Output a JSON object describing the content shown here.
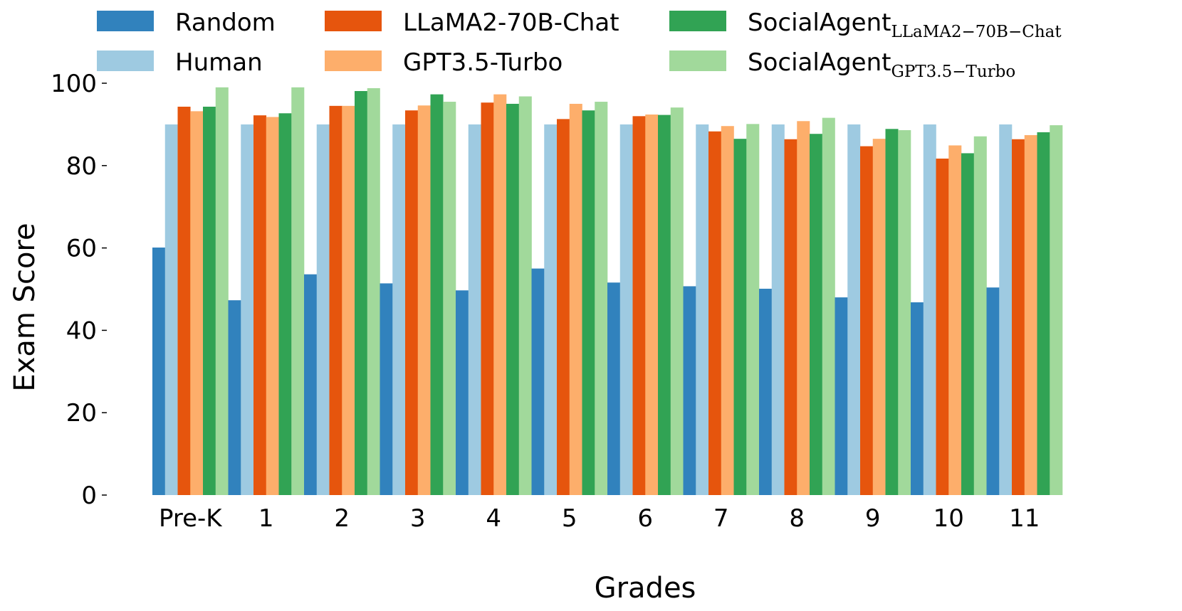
{
  "chart_data": {
    "type": "bar",
    "title": "",
    "xlabel": "Grades",
    "ylabel": "Exam Score",
    "ylim": [
      0,
      100
    ],
    "yticks": [
      0,
      20,
      40,
      60,
      80,
      100
    ],
    "grid": false,
    "legend_position": "top",
    "categories": [
      "Pre-K",
      "1",
      "2",
      "3",
      "4",
      "5",
      "6",
      "7",
      "8",
      "9",
      "10",
      "11"
    ],
    "series": [
      {
        "name": "Random",
        "color": "#3182bd",
        "values": [
          60.1,
          47.3,
          53.6,
          51.4,
          49.7,
          55.0,
          51.6,
          50.7,
          50.1,
          48.0,
          46.8,
          50.4
        ]
      },
      {
        "name": "Human",
        "color": "#9ecae1",
        "values": [
          90.0,
          90.0,
          90.0,
          90.0,
          90.0,
          90.0,
          90.0,
          90.0,
          90.0,
          90.0,
          90.0,
          90.0
        ]
      },
      {
        "name": "LLaMA2-70B-Chat",
        "color": "#e6550d",
        "values": [
          94.3,
          92.2,
          94.5,
          93.4,
          95.3,
          91.3,
          92.0,
          88.3,
          86.4,
          84.7,
          81.7,
          86.4
        ]
      },
      {
        "name": "GPT3.5-Turbo",
        "color": "#fdae6b",
        "values": [
          93.2,
          91.8,
          94.5,
          94.6,
          97.3,
          95.0,
          92.4,
          89.6,
          90.8,
          86.5,
          84.9,
          87.4
        ]
      },
      {
        "name": "SocialAgent",
        "subscript": "LLaMA2−70B−Chat",
        "color": "#31a354",
        "values": [
          94.3,
          92.7,
          98.1,
          97.3,
          95.0,
          93.4,
          92.3,
          86.5,
          87.7,
          88.9,
          83.0,
          88.1
        ]
      },
      {
        "name": "SocialAgent",
        "subscript": "GPT3.5−Turbo",
        "color": "#a1d99b",
        "values": [
          99.0,
          99.0,
          98.8,
          95.5,
          96.8,
          95.5,
          94.1,
          90.1,
          91.6,
          88.6,
          87.1,
          89.8
        ]
      }
    ]
  }
}
